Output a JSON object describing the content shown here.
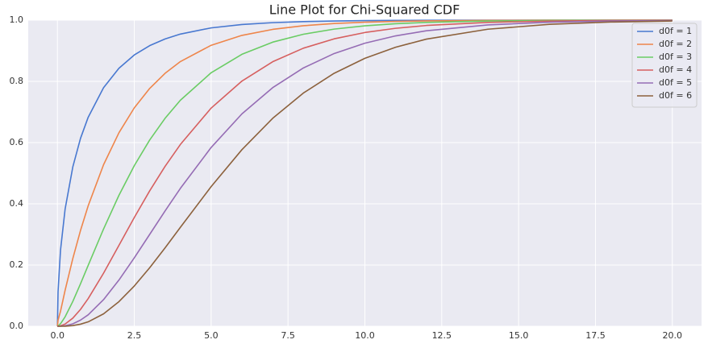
{
  "chart_data": {
    "type": "line",
    "title": "Line Plot for Chi-Squared CDF",
    "x": [
      0,
      0.02,
      0.1,
      0.25,
      0.5,
      0.75,
      1,
      1.5,
      2,
      2.5,
      3,
      3.5,
      4,
      5,
      6,
      7,
      8,
      9,
      10,
      11,
      12,
      14,
      16,
      18,
      20
    ],
    "series": [
      {
        "name": "d0f = 1",
        "color": "#4878d0",
        "values": [
          0,
          0.1125,
          0.2482,
          0.3829,
          0.5205,
          0.6136,
          0.6827,
          0.7793,
          0.8427,
          0.8862,
          0.9167,
          0.9386,
          0.9545,
          0.9747,
          0.9857,
          0.9918,
          0.9953,
          0.9973,
          0.9984,
          0.9991,
          0.9995,
          0.9998,
          0.9999,
          1.0,
          1.0
        ]
      },
      {
        "name": "d0f = 2",
        "color": "#ee854a",
        "values": [
          0,
          0.0198,
          0.0488,
          0.1175,
          0.2212,
          0.3127,
          0.3935,
          0.5276,
          0.6321,
          0.7135,
          0.7769,
          0.8262,
          0.8647,
          0.9179,
          0.9502,
          0.9698,
          0.9817,
          0.9889,
          0.9933,
          0.9959,
          0.9975,
          0.9991,
          0.9997,
          0.9999,
          1.0
        ]
      },
      {
        "name": "d0f = 3",
        "color": "#6acc64",
        "values": [
          0,
          0.0008,
          0.0082,
          0.0309,
          0.0811,
          0.1387,
          0.1987,
          0.3177,
          0.4276,
          0.5247,
          0.6084,
          0.6792,
          0.7385,
          0.8282,
          0.8884,
          0.9281,
          0.954,
          0.9707,
          0.9814,
          0.9883,
          0.9926,
          0.9971,
          0.9989,
          0.9996,
          0.9998
        ]
      },
      {
        "name": "d0f = 4",
        "color": "#d65f5f",
        "values": [
          0,
          0,
          0.0012,
          0.0072,
          0.0265,
          0.055,
          0.0902,
          0.1734,
          0.2642,
          0.3554,
          0.4422,
          0.5221,
          0.594,
          0.7127,
          0.8009,
          0.8641,
          0.9084,
          0.9389,
          0.9596,
          0.9734,
          0.9826,
          0.9927,
          0.997,
          0.9988,
          0.9995
        ]
      },
      {
        "name": "d0f = 5",
        "color": "#956cb4",
        "values": [
          0,
          0,
          0.0002,
          0.0015,
          0.0079,
          0.02,
          0.0374,
          0.0869,
          0.1509,
          0.2235,
          0.3,
          0.3766,
          0.4506,
          0.5841,
          0.6938,
          0.7794,
          0.8438,
          0.8909,
          0.9247,
          0.9486,
          0.9652,
          0.9844,
          0.9932,
          0.9971,
          0.9987
        ]
      },
      {
        "name": "d0f = 6",
        "color": "#8c613c",
        "values": [
          0,
          0,
          0,
          0.0003,
          0.0022,
          0.0067,
          0.0144,
          0.0405,
          0.0803,
          0.1315,
          0.1912,
          0.256,
          0.3233,
          0.4562,
          0.5768,
          0.6792,
          0.7619,
          0.8264,
          0.8753,
          0.9116,
          0.938,
          0.9704,
          0.9863,
          0.9938,
          0.9972
        ]
      }
    ],
    "xlim": [
      -0.95,
      20.95
    ],
    "xticks": [
      {
        "value": 0,
        "label": "0.0"
      },
      2.5,
      {
        "value": 5,
        "label": "5.0"
      },
      7.5,
      {
        "value": 10,
        "label": "10.0"
      },
      12.5,
      {
        "value": 15,
        "label": "15.0"
      },
      17.5,
      {
        "value": 20,
        "label": "20.0"
      }
    ],
    "ylim": [
      0,
      1
    ],
    "yticks": [
      {
        "value": 0,
        "label": "0.0"
      },
      0.2,
      0.4,
      0.6,
      0.8,
      {
        "value": 1,
        "label": "1.0"
      }
    ],
    "grid": true,
    "legend": "upper right"
  }
}
